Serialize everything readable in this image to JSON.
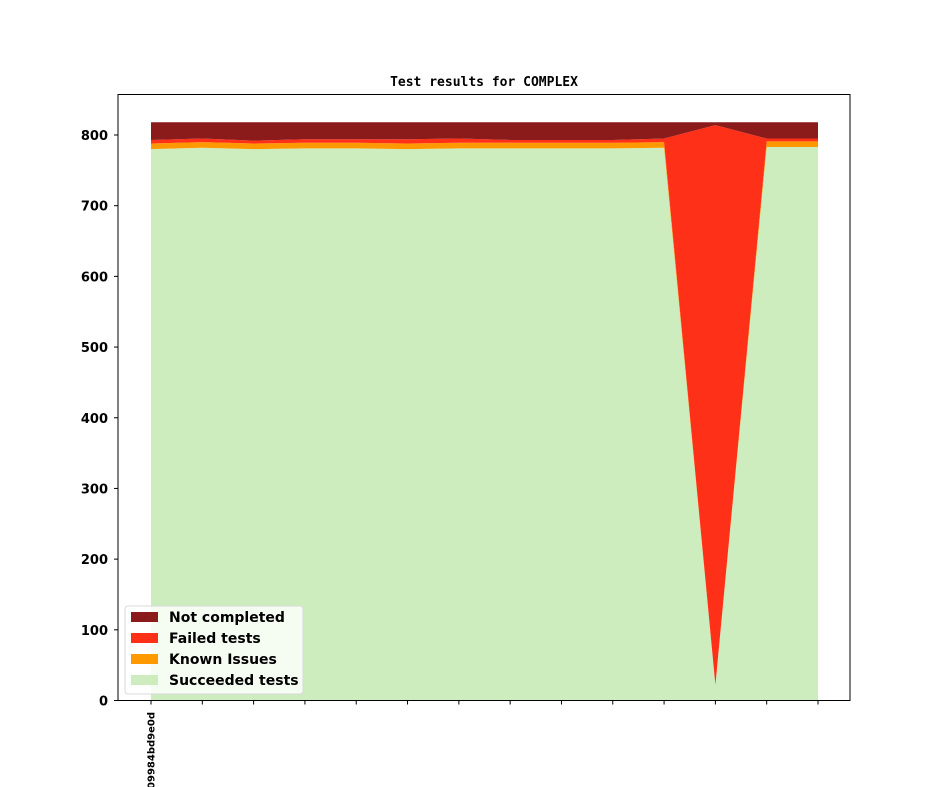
{
  "chart_data": {
    "type": "area",
    "stacked": true,
    "title": "Test results for COMPLEX",
    "xlabel": "",
    "ylabel": "",
    "ylim": [
      0,
      850
    ],
    "yticks": [
      0,
      100,
      200,
      300,
      400,
      500,
      600,
      700,
      800
    ],
    "x_tick_count": 14,
    "x_labels": [
      "09984bd9e0d",
      "",
      "",
      "",
      "",
      "",
      "",
      "",
      "",
      "",
      "",
      "",
      "",
      ""
    ],
    "grid": false,
    "legend_position": "lower-left",
    "series": [
      {
        "name": "Succeeded tests",
        "color": "#cdedbf",
        "values": [
          780,
          782,
          780,
          781,
          781,
          780,
          781,
          781,
          781,
          781,
          782,
          22,
          783,
          783
        ]
      },
      {
        "name": "Known Issues",
        "color": "#ff9900",
        "values": [
          8,
          8,
          8,
          8,
          8,
          8,
          8,
          8,
          8,
          8,
          8,
          0,
          8,
          8
        ]
      },
      {
        "name": "Failed tests",
        "color": "#ff3018",
        "values": [
          5,
          5,
          4,
          5,
          5,
          6,
          6,
          4,
          4,
          4,
          5,
          792,
          4,
          4
        ]
      },
      {
        "name": "Not completed",
        "color": "#8b1a1a",
        "values": [
          25,
          23,
          26,
          24,
          24,
          24,
          23,
          25,
          25,
          25,
          23,
          4,
          23,
          23
        ]
      }
    ]
  }
}
